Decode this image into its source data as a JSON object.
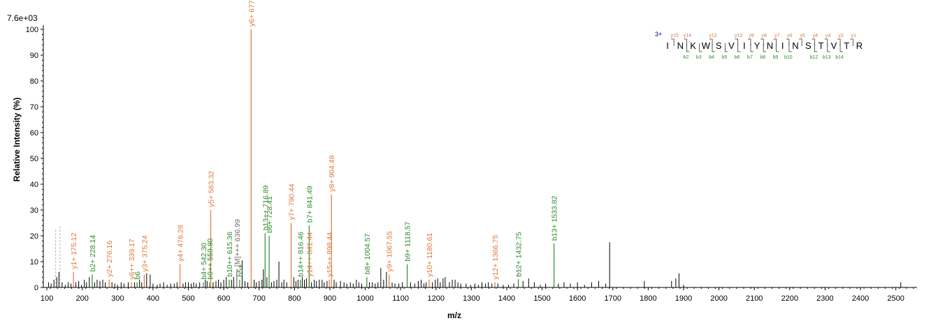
{
  "chart_data": {
    "type": "bar",
    "max_intensity_label": "7.6e+03",
    "xlabel": "m/z",
    "ylabel": "Relative   Intensity (%)",
    "xlim": [
      90,
      2560
    ],
    "ylim": [
      0,
      100
    ],
    "x_ticks": [
      100,
      200,
      300,
      400,
      500,
      600,
      700,
      800,
      900,
      1000,
      1100,
      1200,
      1300,
      1400,
      1500,
      1600,
      1700,
      1800,
      1900,
      2000,
      2100,
      2200,
      2300,
      2400,
      2500
    ],
    "y_ticks": [
      0,
      10,
      20,
      30,
      40,
      50,
      60,
      70,
      80,
      90,
      100
    ],
    "colors": {
      "b_ion": "#2e8b2e",
      "y_ion": "#e0783c",
      "other": "#707070",
      "noise": "#000000",
      "charge": "#000080"
    },
    "annotated_peaks": [
      {
        "mz": 175.12,
        "intensity": 6,
        "label": "y1+ 175.12",
        "ion": "y"
      },
      {
        "mz": 228.14,
        "intensity": 5,
        "label": "b2+ 228.14",
        "ion": "b"
      },
      {
        "mz": 276.16,
        "intensity": 3,
        "label": "y2+ 276.16",
        "ion": "y"
      },
      {
        "mz": 339.17,
        "intensity": 2,
        "label": "y6++ 339.17",
        "ion": "y"
      },
      {
        "mz": 355.0,
        "intensity": 2,
        "label": "b6",
        "ion": "b"
      },
      {
        "mz": 375.24,
        "intensity": 5,
        "label": "y3+ 375.24",
        "ion": "y"
      },
      {
        "mz": 476.28,
        "intensity": 9,
        "label": "y4+ 476.28",
        "ion": "y"
      },
      {
        "mz": 542.3,
        "intensity": 2,
        "label": "b4+ 542.30",
        "ion": "b"
      },
      {
        "mz": 559.8,
        "intensity": 2,
        "label": "b9++ 559.80",
        "ion": "b"
      },
      {
        "mz": 563.32,
        "intensity": 30,
        "label": "y5+ 563.32",
        "ion": "y"
      },
      {
        "mz": 615.36,
        "intensity": 3,
        "label": "b10++ 615.36",
        "ion": "b"
      },
      {
        "mz": 636.99,
        "intensity": 7,
        "label": "[M]+++ 636.99",
        "ion": "other"
      },
      {
        "mz": 645.0,
        "intensity": 3,
        "label": "b5+",
        "ion": "b"
      },
      {
        "mz": 677.38,
        "intensity": 100,
        "label": "y6+ 677.38",
        "ion": "y"
      },
      {
        "mz": 716.89,
        "intensity": 21,
        "label": "b13++ 716.89",
        "ion": "b"
      },
      {
        "mz": 728.41,
        "intensity": 20,
        "label": "b6+ 728.41",
        "ion": "b"
      },
      {
        "mz": 790.44,
        "intensity": 25,
        "label": "y7+ 790.44",
        "ion": "y"
      },
      {
        "mz": 816.46,
        "intensity": 3,
        "label": "b14++ 816.46",
        "ion": "b"
      },
      {
        "mz": 841.44,
        "intensity": 3,
        "label": "y14++ 841.44",
        "ion": "y"
      },
      {
        "mz": 841.49,
        "intensity": 24,
        "label": "b7+ 841.49",
        "ion": "b"
      },
      {
        "mz": 898.44,
        "intensity": 3,
        "label": "y15++ 898.44",
        "ion": "y"
      },
      {
        "mz": 904.48,
        "intensity": 36,
        "label": "y8+ 904.48",
        "ion": "y"
      },
      {
        "mz": 1004.57,
        "intensity": 4,
        "label": "b8+ 1004.57",
        "ion": "b"
      },
      {
        "mz": 1067.55,
        "intensity": 5,
        "label": "y9+ 1067.55",
        "ion": "y"
      },
      {
        "mz": 1118.57,
        "intensity": 9,
        "label": "b9+ 1118.57",
        "ion": "b"
      },
      {
        "mz": 1180.61,
        "intensity": 3,
        "label": "y10+ 1180.61",
        "ion": "y"
      },
      {
        "mz": 1366.75,
        "intensity": 2,
        "label": "y12+ 1366.75",
        "ion": "y"
      },
      {
        "mz": 1432.75,
        "intensity": 3,
        "label": "b12+ 1432.75",
        "ion": "b"
      },
      {
        "mz": 1533.82,
        "intensity": 17,
        "label": "b13+ 1533.82",
        "ion": "b"
      }
    ],
    "unlabeled_peaks": [
      [
        105,
        2
      ],
      [
        112,
        1.5
      ],
      [
        120,
        3
      ],
      [
        128,
        4
      ],
      [
        134,
        6
      ],
      [
        143,
        2
      ],
      [
        152,
        1
      ],
      [
        160,
        2
      ],
      [
        168,
        1.5
      ],
      [
        182,
        2
      ],
      [
        190,
        2.5
      ],
      [
        198,
        1
      ],
      [
        206,
        3
      ],
      [
        212,
        2
      ],
      [
        220,
        4
      ],
      [
        235,
        2
      ],
      [
        242,
        3
      ],
      [
        250,
        2.5
      ],
      [
        258,
        3
      ],
      [
        265,
        2
      ],
      [
        284,
        2
      ],
      [
        292,
        1.5
      ],
      [
        300,
        1
      ],
      [
        310,
        2
      ],
      [
        318,
        1.5
      ],
      [
        330,
        2
      ],
      [
        348,
        2
      ],
      [
        362,
        3
      ],
      [
        368,
        2
      ],
      [
        382,
        5.5
      ],
      [
        392,
        5
      ],
      [
        400,
        1.5
      ],
      [
        412,
        1
      ],
      [
        420,
        1.5
      ],
      [
        430,
        2
      ],
      [
        440,
        1
      ],
      [
        450,
        1.5
      ],
      [
        460,
        1.5
      ],
      [
        468,
        2
      ],
      [
        485,
        1.5
      ],
      [
        492,
        2
      ],
      [
        500,
        2
      ],
      [
        508,
        1.5
      ],
      [
        515,
        2
      ],
      [
        522,
        1.5
      ],
      [
        532,
        2
      ],
      [
        548,
        3
      ],
      [
        553,
        2.5
      ],
      [
        570,
        2
      ],
      [
        578,
        2.5
      ],
      [
        585,
        3
      ],
      [
        592,
        2
      ],
      [
        600,
        3
      ],
      [
        607,
        4
      ],
      [
        622,
        3
      ],
      [
        628,
        4
      ],
      [
        652,
        10.5
      ],
      [
        660,
        2.5
      ],
      [
        668,
        2
      ],
      [
        686,
        3
      ],
      [
        692,
        2
      ],
      [
        700,
        2.5
      ],
      [
        708,
        3
      ],
      [
        712,
        7
      ],
      [
        722,
        4
      ],
      [
        735,
        2
      ],
      [
        742,
        2.5
      ],
      [
        750,
        3
      ],
      [
        756,
        10
      ],
      [
        764,
        2
      ],
      [
        770,
        3
      ],
      [
        778,
        2
      ],
      [
        798,
        4
      ],
      [
        804,
        2.5
      ],
      [
        810,
        3
      ],
      [
        822,
        4
      ],
      [
        828,
        3
      ],
      [
        834,
        3.5
      ],
      [
        848,
        2
      ],
      [
        856,
        3
      ],
      [
        862,
        2.5
      ],
      [
        870,
        3
      ],
      [
        878,
        3
      ],
      [
        884,
        2
      ],
      [
        892,
        2.5
      ],
      [
        912,
        3
      ],
      [
        918,
        2
      ],
      [
        930,
        2.5
      ],
      [
        940,
        2
      ],
      [
        948,
        1.5
      ],
      [
        958,
        2
      ],
      [
        966,
        1.5
      ],
      [
        975,
        3
      ],
      [
        982,
        2
      ],
      [
        990,
        1.5
      ],
      [
        1012,
        2
      ],
      [
        1020,
        2
      ],
      [
        1028,
        1.5
      ],
      [
        1036,
        2
      ],
      [
        1044,
        7.5
      ],
      [
        1052,
        3
      ],
      [
        1060,
        6
      ],
      [
        1076,
        2
      ],
      [
        1084,
        1.5
      ],
      [
        1095,
        1.5
      ],
      [
        1105,
        2
      ],
      [
        1128,
        2
      ],
      [
        1140,
        1.5
      ],
      [
        1150,
        2.5
      ],
      [
        1158,
        3
      ],
      [
        1166,
        1.5
      ],
      [
        1172,
        2
      ],
      [
        1190,
        2
      ],
      [
        1198,
        3
      ],
      [
        1205,
        3.5
      ],
      [
        1212,
        2
      ],
      [
        1220,
        3.5
      ],
      [
        1226,
        4
      ],
      [
        1238,
        2
      ],
      [
        1246,
        3
      ],
      [
        1254,
        3
      ],
      [
        1262,
        2
      ],
      [
        1270,
        1.5
      ],
      [
        1285,
        1.5
      ],
      [
        1298,
        1
      ],
      [
        1310,
        1.5
      ],
      [
        1320,
        1
      ],
      [
        1330,
        2
      ],
      [
        1340,
        1.5
      ],
      [
        1348,
        2
      ],
      [
        1358,
        1.5
      ],
      [
        1375,
        1.5
      ],
      [
        1390,
        1
      ],
      [
        1405,
        1
      ],
      [
        1420,
        1.5
      ],
      [
        1446,
        2.5
      ],
      [
        1462,
        3.5
      ],
      [
        1478,
        2
      ],
      [
        1495,
        1
      ],
      [
        1510,
        1.5
      ],
      [
        1546,
        1.5
      ],
      [
        1562,
        2
      ],
      [
        1580,
        1.5
      ],
      [
        1600,
        2
      ],
      [
        1620,
        1
      ],
      [
        1640,
        2
      ],
      [
        1660,
        2.5
      ],
      [
        1680,
        1.5
      ],
      [
        1691,
        17.5
      ],
      [
        1789,
        2.5
      ],
      [
        1866,
        2.5
      ],
      [
        1878,
        3.5
      ],
      [
        1887,
        5.5
      ],
      [
        1900,
        1
      ],
      [
        2514,
        2
      ]
    ],
    "dashed_markers": [
      [
        125,
        23
      ],
      [
        137,
        24
      ],
      [
        1432.75,
        8
      ]
    ],
    "sequence": {
      "charge": "3+",
      "residues": [
        "I",
        "N",
        "K",
        "W",
        "S",
        "V",
        "I",
        "Y",
        "N",
        "I",
        "N",
        "S",
        "T",
        "V",
        "T",
        "R"
      ],
      "y_ions": [
        "y15",
        "y14",
        "y12",
        "y10",
        "y9",
        "y8",
        "y7",
        "y6",
        "y5",
        "y4",
        "y3",
        "y2",
        "y1"
      ],
      "b_ions": [
        "b2",
        "b3",
        "b4",
        "b5",
        "b6",
        "b7",
        "b8",
        "b9",
        "b10",
        "b12",
        "b13",
        "b14"
      ]
    }
  }
}
